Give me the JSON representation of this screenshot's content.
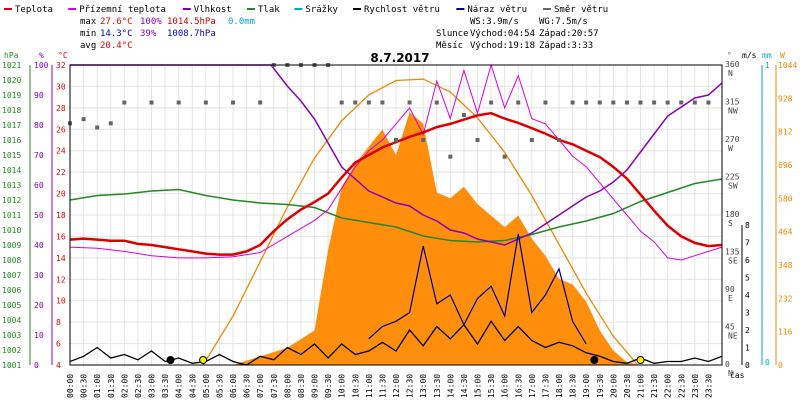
{
  "chart_data": {
    "type": "line",
    "title": "8.7.2017",
    "colors": {
      "teplota": "#dd0000",
      "pocitova": "#dd00dd",
      "vlhkost": "#8800bb",
      "tlak": "#228822",
      "srazky": "#00aacc",
      "rychlost": "#000000",
      "naraz": "#000088",
      "smer": "#666666",
      "slunce": "#ff8800",
      "slunce_line": "#ee8800"
    },
    "legend": [
      {
        "label": "Teplota",
        "color": "#dd0000"
      },
      {
        "label": "Přízemní teplota",
        "color": "#dd00dd"
      },
      {
        "label": "Vlhkost",
        "color": "#8800bb"
      },
      {
        "label": "Tlak",
        "color": "#228822"
      },
      {
        "label": "Srážky",
        "color": "#00aacc"
      },
      {
        "label": "Rychlost větru",
        "color": "#000000"
      },
      {
        "label": "Náraz větru",
        "color": "#000088"
      },
      {
        "label": "Směr větru",
        "color": "#666666"
      }
    ],
    "stats": {
      "max_label": "max",
      "max_temp": "27.6°C",
      "max_hum": "100%",
      "max_press": "1014.5hPa",
      "max_rain": "0.0mm",
      "min_label": "min",
      "min_temp": "14.3°C",
      "min_hum": "39%",
      "min_press": "1008.7hPa",
      "avg_label": "avg",
      "avg_temp": "20.4°C"
    },
    "wind_info": {
      "ws": "WS:3.9m/s",
      "wg": "WG:7.5m/s"
    },
    "sun": {
      "label": "Slunce",
      "rise": "Východ:04:54",
      "set": "Západ:20:57"
    },
    "moon": {
      "label": "Měsíc",
      "rise": "Východ:19:18",
      "set": "Západ:3:33"
    },
    "axes_units": {
      "hpa": "hPa",
      "pct": "%",
      "degc": "°C",
      "deg": "°",
      "ms": "m/s",
      "mm": "mm",
      "w": "W"
    },
    "xlabel": "čas",
    "x_ticks": [
      "00:00",
      "00:30",
      "01:00",
      "01:30",
      "02:00",
      "02:30",
      "03:00",
      "03:30",
      "04:00",
      "04:30",
      "05:00",
      "05:30",
      "06:00",
      "06:30",
      "07:00",
      "07:30",
      "08:00",
      "08:30",
      "09:00",
      "09:30",
      "10:00",
      "10:30",
      "11:00",
      "11:30",
      "12:00",
      "12:30",
      "13:00",
      "13:30",
      "14:00",
      "14:30",
      "15:00",
      "15:30",
      "16:00",
      "16:30",
      "17:00",
      "17:30",
      "18:00",
      "18:30",
      "19:00",
      "19:30",
      "20:00",
      "20:30",
      "21:00",
      "21:30",
      "22:00",
      "22:30",
      "23:00",
      "23:30"
    ],
    "y_pressure_ticks": [
      "1021",
      "1020",
      "1019",
      "1018",
      "1017",
      "1016",
      "1015",
      "1014",
      "1013",
      "1012",
      "1011",
      "1010",
      "1009",
      "1008",
      "1007",
      "1006",
      "1005",
      "1004",
      "1003",
      "1002",
      "1001"
    ],
    "y_humidity_ticks": [
      "100",
      "90",
      "80",
      "70",
      "60",
      "50",
      "40",
      "30",
      "20",
      "10",
      "0"
    ],
    "y_temp_ticks": [
      "32",
      "30",
      "28",
      "26",
      "24",
      "22",
      "20",
      "18",
      "16",
      "14",
      "12",
      "10",
      "8",
      "6",
      "4"
    ],
    "y_dir_ticks": [
      {
        "deg": "360",
        "dir": "N"
      },
      {
        "deg": "315",
        "dir": "NW"
      },
      {
        "deg": "270",
        "dir": "W"
      },
      {
        "deg": "225",
        "dir": "SW"
      },
      {
        "deg": "180",
        "dir": "S"
      },
      {
        "deg": "135",
        "dir": "SE"
      },
      {
        "deg": "90",
        "dir": "E"
      },
      {
        "deg": "45",
        "dir": "NE"
      },
      {
        "deg": "0",
        "dir": "N"
      }
    ],
    "y_wind_ticks": [
      "8",
      "7",
      "6",
      "5",
      "4",
      "3",
      "2",
      "1",
      "0"
    ],
    "y_rain_ticks": [
      "1",
      "0"
    ],
    "y_solar_ticks": [
      "1044",
      "928",
      "812",
      "696",
      "580",
      "464",
      "348",
      "232",
      "116",
      "0"
    ],
    "ranges": {
      "pressure": [
        1001,
        1021
      ],
      "humidity": [
        0,
        100
      ],
      "temp": [
        4,
        32
      ],
      "direction": [
        0,
        360
      ],
      "wind": [
        0,
        8
      ],
      "solar": [
        0,
        1044
      ]
    },
    "temperature": [
      [
        0,
        15.7
      ],
      [
        0.5,
        15.8
      ],
      [
        1,
        15.7
      ],
      [
        1.5,
        15.6
      ],
      [
        2,
        15.6
      ],
      [
        2.5,
        15.3
      ],
      [
        3,
        15.2
      ],
      [
        3.5,
        15.0
      ],
      [
        4,
        14.8
      ],
      [
        4.5,
        14.6
      ],
      [
        5,
        14.4
      ],
      [
        5.5,
        14.3
      ],
      [
        6,
        14.3
      ],
      [
        6.5,
        14.6
      ],
      [
        7,
        15.2
      ],
      [
        7.5,
        16.5
      ],
      [
        8,
        17.6
      ],
      [
        8.5,
        18.5
      ],
      [
        9,
        19.2
      ],
      [
        9.5,
        20.0
      ],
      [
        10,
        21.5
      ],
      [
        10.5,
        22.9
      ],
      [
        11,
        23.6
      ],
      [
        11.5,
        24.3
      ],
      [
        12,
        24.8
      ],
      [
        12.5,
        25.3
      ],
      [
        13,
        25.7
      ],
      [
        13.5,
        26.2
      ],
      [
        14,
        26.5
      ],
      [
        14.5,
        26.9
      ],
      [
        15,
        27.3
      ],
      [
        15.5,
        27.5
      ],
      [
        16,
        27.0
      ],
      [
        16.5,
        26.6
      ],
      [
        17,
        26.1
      ],
      [
        17.5,
        25.6
      ],
      [
        18,
        25.0
      ],
      [
        18.5,
        24.6
      ],
      [
        19,
        24.0
      ],
      [
        19.5,
        23.4
      ],
      [
        20,
        22.5
      ],
      [
        20.5,
        21.4
      ],
      [
        21,
        19.9
      ],
      [
        21.5,
        18.4
      ],
      [
        22,
        17.0
      ],
      [
        22.5,
        16.0
      ],
      [
        23,
        15.4
      ],
      [
        23.5,
        15.1
      ],
      [
        24,
        15.2
      ]
    ],
    "ground_temp": [
      [
        0,
        15.0
      ],
      [
        1,
        14.9
      ],
      [
        2,
        14.6
      ],
      [
        3,
        14.2
      ],
      [
        4,
        14.0
      ],
      [
        5,
        14.0
      ],
      [
        6,
        14.1
      ],
      [
        7,
        14.5
      ],
      [
        8,
        16.0
      ],
      [
        9,
        17.5
      ],
      [
        9.5,
        18.5
      ],
      [
        10,
        20.5
      ],
      [
        10.5,
        22.5
      ],
      [
        11,
        24.0
      ],
      [
        11.5,
        25.0
      ],
      [
        12,
        26.5
      ],
      [
        12.5,
        28.0
      ],
      [
        13,
        25.5
      ],
      [
        13.5,
        30.5
      ],
      [
        14,
        27.0
      ],
      [
        14.5,
        31.5
      ],
      [
        15,
        27.5
      ],
      [
        15.5,
        32.0
      ],
      [
        16,
        28.0
      ],
      [
        16.5,
        31.0
      ],
      [
        17,
        27.0
      ],
      [
        17.5,
        26.5
      ],
      [
        18,
        25.0
      ],
      [
        18.5,
        23.5
      ],
      [
        19,
        22.5
      ],
      [
        19.5,
        21.0
      ],
      [
        20,
        19.5
      ],
      [
        20.5,
        18.0
      ],
      [
        21,
        16.5
      ],
      [
        21.5,
        15.5
      ],
      [
        22,
        14.0
      ],
      [
        22.5,
        13.8
      ],
      [
        23,
        14.2
      ],
      [
        23.5,
        14.6
      ],
      [
        24,
        15.0
      ]
    ],
    "humidity": [
      [
        0,
        100
      ],
      [
        1,
        100
      ],
      [
        2,
        100
      ],
      [
        3,
        100
      ],
      [
        4,
        100
      ],
      [
        5,
        100
      ],
      [
        6,
        100
      ],
      [
        7,
        100
      ],
      [
        7.4,
        100
      ],
      [
        8,
        93
      ],
      [
        8.5,
        88
      ],
      [
        9,
        82
      ],
      [
        9.5,
        74
      ],
      [
        10,
        66
      ],
      [
        10.5,
        62
      ],
      [
        11,
        58
      ],
      [
        11.5,
        56
      ],
      [
        12,
        54
      ],
      [
        12.5,
        53
      ],
      [
        13,
        50
      ],
      [
        13.5,
        48
      ],
      [
        14,
        45
      ],
      [
        14.5,
        44
      ],
      [
        15,
        42
      ],
      [
        15.5,
        41
      ],
      [
        16,
        40
      ],
      [
        16.5,
        42
      ],
      [
        17,
        44
      ],
      [
        17.5,
        47
      ],
      [
        18,
        50
      ],
      [
        18.5,
        53
      ],
      [
        19,
        56
      ],
      [
        19.5,
        58
      ],
      [
        20,
        61
      ],
      [
        20.5,
        65
      ],
      [
        21,
        71
      ],
      [
        21.5,
        77
      ],
      [
        22,
        83
      ],
      [
        22.5,
        86
      ],
      [
        23,
        89
      ],
      [
        23.5,
        90
      ],
      [
        24,
        94
      ]
    ],
    "pressure": [
      [
        0,
        1012.0
      ],
      [
        1,
        1012.3
      ],
      [
        2,
        1012.4
      ],
      [
        3,
        1012.6
      ],
      [
        4,
        1012.7
      ],
      [
        5,
        1012.3
      ],
      [
        6,
        1012.0
      ],
      [
        7,
        1011.8
      ],
      [
        8,
        1011.7
      ],
      [
        9,
        1011.5
      ],
      [
        10,
        1010.8
      ],
      [
        11,
        1010.5
      ],
      [
        12,
        1010.2
      ],
      [
        13,
        1009.6
      ],
      [
        14,
        1009.3
      ],
      [
        15,
        1009.2
      ],
      [
        16,
        1009.3
      ],
      [
        17,
        1009.7
      ],
      [
        18,
        1010.2
      ],
      [
        19,
        1010.6
      ],
      [
        20,
        1011.1
      ],
      [
        21,
        1011.9
      ],
      [
        22,
        1012.5
      ],
      [
        23,
        1013.1
      ],
      [
        24,
        1013.4
      ]
    ],
    "wind_speed": [
      [
        0,
        0.2
      ],
      [
        0.5,
        0.5
      ],
      [
        1,
        1.0
      ],
      [
        1.5,
        0.4
      ],
      [
        2,
        0.6
      ],
      [
        2.5,
        0.3
      ],
      [
        3,
        0.8
      ],
      [
        3.5,
        0.2
      ],
      [
        4,
        0.4
      ],
      [
        4.5,
        0.1
      ],
      [
        5,
        0.2
      ],
      [
        5.5,
        0.6
      ],
      [
        6,
        0.2
      ],
      [
        6.5,
        0.0
      ],
      [
        7,
        0.5
      ],
      [
        7.5,
        0.3
      ],
      [
        8,
        1.0
      ],
      [
        8.5,
        0.6
      ],
      [
        9,
        1.2
      ],
      [
        9.5,
        0.4
      ],
      [
        10,
        1.2
      ],
      [
        10.5,
        0.6
      ],
      [
        11,
        0.8
      ],
      [
        11.5,
        1.3
      ],
      [
        12,
        0.8
      ],
      [
        12.5,
        2.0
      ],
      [
        13,
        1.1
      ],
      [
        13.5,
        2.2
      ],
      [
        14,
        1.5
      ],
      [
        14.5,
        2.3
      ],
      [
        15,
        1.2
      ],
      [
        15.5,
        2.5
      ],
      [
        16,
        1.4
      ],
      [
        16.5,
        2.2
      ],
      [
        17,
        1.4
      ],
      [
        17.5,
        1.0
      ],
      [
        18,
        1.3
      ],
      [
        18.5,
        1.1
      ],
      [
        19,
        0.7
      ],
      [
        19.5,
        0.5
      ],
      [
        20,
        0.2
      ],
      [
        20.5,
        0.1
      ],
      [
        21,
        0.4
      ],
      [
        21.5,
        0.1
      ],
      [
        22,
        0.2
      ],
      [
        22.5,
        0.2
      ],
      [
        23,
        0.4
      ],
      [
        23.5,
        0.2
      ],
      [
        24,
        0.5
      ]
    ],
    "wind_gust": [
      [
        11,
        1.5
      ],
      [
        11.5,
        2.2
      ],
      [
        12,
        2.5
      ],
      [
        12.5,
        3.0
      ],
      [
        13,
        6.8
      ],
      [
        13.5,
        3.5
      ],
      [
        14,
        4.0
      ],
      [
        14.5,
        2.3
      ],
      [
        15,
        3.8
      ],
      [
        15.5,
        4.5
      ],
      [
        16,
        2.8
      ],
      [
        16.5,
        7.5
      ],
      [
        17,
        3.0
      ],
      [
        17.5,
        4.0
      ],
      [
        18,
        5.5
      ],
      [
        18.5,
        2.5
      ],
      [
        19,
        1.2
      ]
    ],
    "wind_direction": [
      [
        0,
        290
      ],
      [
        0.5,
        295
      ],
      [
        1,
        285
      ],
      [
        1.5,
        290
      ],
      [
        2,
        315
      ],
      [
        3,
        315
      ],
      [
        4,
        315
      ],
      [
        5,
        315
      ],
      [
        6,
        315
      ],
      [
        7,
        315
      ],
      [
        7.5,
        360
      ],
      [
        8,
        360
      ],
      [
        8.5,
        360
      ],
      [
        9,
        360
      ],
      [
        9.5,
        360
      ],
      [
        10,
        315
      ],
      [
        10.5,
        315
      ],
      [
        11,
        315
      ],
      [
        11.5,
        315
      ],
      [
        12,
        270
      ],
      [
        12.5,
        315
      ],
      [
        13,
        270
      ],
      [
        13.5,
        315
      ],
      [
        14,
        250
      ],
      [
        14.5,
        300
      ],
      [
        15,
        270
      ],
      [
        15.5,
        315
      ],
      [
        16,
        250
      ],
      [
        16.5,
        315
      ],
      [
        17,
        270
      ],
      [
        17.5,
        315
      ],
      [
        18,
        270
      ],
      [
        18.5,
        315
      ],
      [
        19,
        315
      ],
      [
        19.5,
        315
      ],
      [
        20,
        315
      ],
      [
        20.5,
        315
      ],
      [
        21,
        315
      ],
      [
        21.5,
        315
      ],
      [
        22,
        315
      ],
      [
        22.5,
        315
      ],
      [
        23,
        315
      ],
      [
        23.5,
        315
      ]
    ],
    "solar": [
      [
        0,
        0
      ],
      [
        4.9,
        0
      ],
      [
        6,
        0
      ],
      [
        7,
        30
      ],
      [
        8,
        60
      ],
      [
        9,
        120
      ],
      [
        9.5,
        400
      ],
      [
        10,
        620
      ],
      [
        10.5,
        700
      ],
      [
        11,
        760
      ],
      [
        11.5,
        820
      ],
      [
        12,
        730
      ],
      [
        12.5,
        880
      ],
      [
        13,
        840
      ],
      [
        13.5,
        600
      ],
      [
        14,
        580
      ],
      [
        14.5,
        620
      ],
      [
        15,
        560
      ],
      [
        15.5,
        520
      ],
      [
        16,
        480
      ],
      [
        16.5,
        520
      ],
      [
        17,
        440
      ],
      [
        17.5,
        380
      ],
      [
        18,
        300
      ],
      [
        18.5,
        280
      ],
      [
        19,
        220
      ],
      [
        19.5,
        120
      ],
      [
        20,
        50
      ],
      [
        20.5,
        10
      ],
      [
        21,
        0
      ],
      [
        24,
        0
      ]
    ],
    "clear_sky": [
      [
        4.9,
        0
      ],
      [
        6,
        170
      ],
      [
        7,
        360
      ],
      [
        8,
        550
      ],
      [
        9,
        720
      ],
      [
        10,
        850
      ],
      [
        11,
        940
      ],
      [
        12,
        990
      ],
      [
        13,
        995
      ],
      [
        14,
        950
      ],
      [
        15,
        860
      ],
      [
        16,
        740
      ],
      [
        17,
        590
      ],
      [
        18,
        420
      ],
      [
        19,
        250
      ],
      [
        20,
        100
      ],
      [
        20.9,
        0
      ]
    ],
    "marker_points": [
      {
        "x": 3.7,
        "kind": "moonset"
      },
      {
        "x": 4.9,
        "kind": "sunrise"
      },
      {
        "x": 19.3,
        "kind": "moonrise"
      },
      {
        "x": 21.0,
        "kind": "sunset"
      }
    ]
  }
}
